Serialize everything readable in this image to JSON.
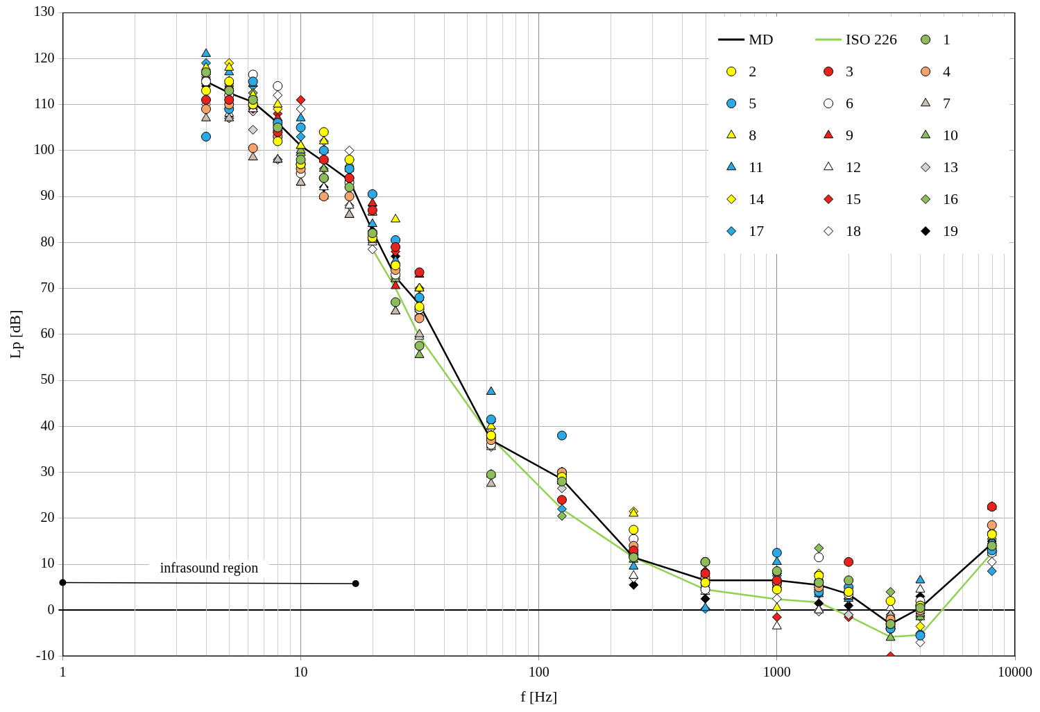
{
  "chart_data": {
    "type": "scatter",
    "x_label": "f [Hz]",
    "y_label": "Lp [dB]",
    "log": "x",
    "grid": true,
    "legend": "top-right",
    "xlim": [
      1,
      10000
    ],
    "xticks": [
      1,
      10,
      100,
      1000,
      10000
    ],
    "ylim": [
      -10,
      130
    ],
    "yticks": [
      -10,
      0,
      10,
      20,
      30,
      40,
      50,
      60,
      70,
      80,
      90,
      100,
      110,
      120,
      130
    ],
    "x": [
      4,
      5,
      6.3,
      8,
      10,
      12.5,
      16,
      20,
      25,
      31.5,
      63,
      125,
      250,
      500,
      1000,
      1500,
      2000,
      3000,
      4000,
      8000
    ],
    "series": [
      {
        "name": "MD",
        "type": "line",
        "line_style": "solid",
        "color": "#000000",
        "values": [
          115,
          112.5,
          110.5,
          106,
          101,
          97.5,
          93.5,
          82.5,
          72.5,
          66.5,
          37,
          28.5,
          11.5,
          6.5,
          6.5,
          5.5,
          3.5,
          -3,
          0.5,
          14.5
        ]
      },
      {
        "name": "ISO 226",
        "type": "line",
        "line_style": "solid",
        "color": "#92d050",
        "values": [
          null,
          null,
          null,
          null,
          null,
          null,
          null,
          78.5,
          70,
          59.5,
          37.5,
          22,
          11.5,
          4.5,
          2.4,
          1.7,
          -1.3,
          -5.8,
          -5.4,
          12.5
        ]
      },
      {
        "name": "1",
        "marker": "circle",
        "color": "#8fbc5a",
        "values": [
          117,
          113,
          111,
          105,
          98,
          94,
          92,
          82,
          67,
          57.5,
          29.5,
          28,
          11.5,
          10.5,
          8.5,
          6,
          6.5,
          -3,
          0.5,
          14
        ]
      },
      {
        "name": "2",
        "marker": "circle",
        "color": "#ffff00",
        "values": [
          113,
          115,
          110,
          102,
          97,
          104,
          98,
          81,
          75,
          66,
          38,
          29,
          17.5,
          6,
          4.5,
          7.5,
          4,
          2,
          1,
          16.5
        ]
      },
      {
        "name": "3",
        "marker": "circle",
        "color": "#e8231e",
        "values": [
          111,
          111,
          110,
          104,
          97,
          98,
          94,
          87,
          79,
          73.5,
          38,
          24,
          13,
          8,
          6.5,
          6,
          10.5,
          -3,
          1,
          22.5
        ]
      },
      {
        "name": "4",
        "marker": "circle",
        "color": "#f4a46a",
        "values": [
          109,
          110,
          100.5,
          103,
          96,
          90,
          90,
          82,
          74,
          63.5,
          37,
          30,
          14,
          7,
          6,
          5,
          4,
          -2,
          0,
          18.5
        ]
      },
      {
        "name": "5",
        "marker": "circle",
        "color": "#2ca8e2",
        "values": [
          103,
          109,
          115,
          106,
          105,
          100,
          96,
          90.5,
          80.5,
          68,
          41.5,
          38,
          12,
          10.5,
          12.5,
          4,
          5,
          -4,
          -5.5,
          13
        ]
      },
      {
        "name": "6",
        "marker": "circle",
        "color": "#ffffff",
        "values": [
          115,
          112,
          116.5,
          114,
          95,
          94,
          93,
          81,
          73,
          65.5,
          36,
          30,
          15.5,
          4.5,
          6,
          11.5,
          3.5,
          -4,
          2,
          12.5
        ]
      },
      {
        "name": "7",
        "marker": "triangle",
        "color": "#c9bdb2",
        "values": [
          107,
          107,
          98.5,
          98,
          93,
          90,
          86,
          80.5,
          65,
          60,
          27.5,
          30,
          13,
          5,
          5.5,
          5,
          3,
          -1,
          -0.7,
          13
        ]
      },
      {
        "name": "8",
        "marker": "triangle",
        "color": "#ffff00",
        "values": [
          118,
          118,
          112,
          110,
          101,
          102,
          97,
          86.5,
          85,
          70,
          40,
          29,
          21,
          6,
          0.5,
          7,
          4,
          -3,
          0.5,
          16
        ]
      },
      {
        "name": "9",
        "marker": "triangle",
        "color": "#e8231e",
        "values": [
          116,
          114,
          110,
          107,
          101,
          98,
          94,
          88.5,
          70.5,
          73,
          38,
          28,
          12,
          8,
          6,
          6,
          3,
          -3,
          0.8,
          22.5
        ]
      },
      {
        "name": "10",
        "marker": "triangle",
        "color": "#8fbc5a",
        "values": [
          117,
          115,
          111,
          105,
          100,
          96,
          86,
          86.5,
          72,
          55.5,
          29.5,
          28,
          11,
          7,
          8.5,
          5.5,
          3,
          -6,
          -1.5,
          14
        ]
      },
      {
        "name": "11",
        "marker": "triangle",
        "color": "#2ca8e2",
        "values": [
          121,
          117,
          114.5,
          106,
          107,
          100,
          96,
          84,
          76,
          70,
          47.5,
          30,
          9.5,
          0.5,
          10.5,
          3.5,
          2.5,
          -2,
          6.5,
          15
        ]
      },
      {
        "name": "12",
        "marker": "triangle",
        "color": "#ffffff",
        "values": [
          115,
          108,
          109,
          98,
          93,
          92,
          88,
          80,
          65,
          59.5,
          35.5,
          29.5,
          7.5,
          4,
          -3.5,
          0,
          3,
          0.5,
          4.5,
          12.5
        ]
      },
      {
        "name": "13",
        "marker": "diamond",
        "color": "#d4d4d4",
        "values": [
          110,
          107,
          104.5,
          98,
          95,
          102,
          88,
          80.5,
          72,
          65,
          39.5,
          26.5,
          15.5,
          6,
          6,
          -0.3,
          -1,
          -1,
          -0.7,
          13
        ]
      },
      {
        "name": "14",
        "marker": "diamond",
        "color": "#ffff00",
        "values": [
          113,
          119,
          111,
          109,
          97,
          104,
          98,
          80.5,
          74,
          68,
          37,
          30,
          21.5,
          7,
          4.5,
          8,
          4,
          2,
          -3.5,
          17
        ]
      },
      {
        "name": "15",
        "marker": "diamond",
        "color": "#e8231e",
        "values": [
          111,
          112,
          109,
          108,
          111,
          98,
          94,
          88,
          78,
          70,
          38,
          29,
          13,
          8.5,
          -1.5,
          5,
          -1.5,
          -10,
          0.8,
          14
        ]
      },
      {
        "name": "16",
        "marker": "diamond",
        "color": "#8fbc5a",
        "values": [
          117,
          114,
          112.5,
          104,
          99,
          96,
          92,
          82,
          72,
          64,
          37.5,
          20.5,
          11.5,
          6,
          8,
          13.5,
          6.5,
          4,
          -1.5,
          13
        ]
      },
      {
        "name": "17",
        "marker": "diamond",
        "color": "#2ca8e2",
        "values": [
          119,
          113,
          114,
          106,
          103,
          100,
          96,
          90.5,
          75,
          68,
          41,
          22,
          12,
          0.3,
          7.5,
          3.5,
          2.5,
          -4,
          -5,
          8.5
        ]
      },
      {
        "name": "18",
        "marker": "diamond",
        "color": "#ffffff",
        "values": [
          116,
          107,
          108.5,
          112,
          109,
          94,
          100,
          78.5,
          72.5,
          65.5,
          35.5,
          28,
          7,
          5,
          2.5,
          0,
          -1,
          -4,
          -7,
          10.5
        ]
      },
      {
        "name": "19",
        "marker": "diamond",
        "color": "#000000",
        "values": [
          114,
          111,
          108.5,
          104,
          99,
          92,
          90,
          82.5,
          77,
          67.5,
          37,
          28,
          5.5,
          2.5,
          5,
          1.5,
          1,
          -2.5,
          3,
          15
        ]
      }
    ],
    "annotations": [
      {
        "text": "infrasound region",
        "x": [
          1,
          17
        ],
        "y": [
          6,
          5.8
        ]
      }
    ]
  }
}
